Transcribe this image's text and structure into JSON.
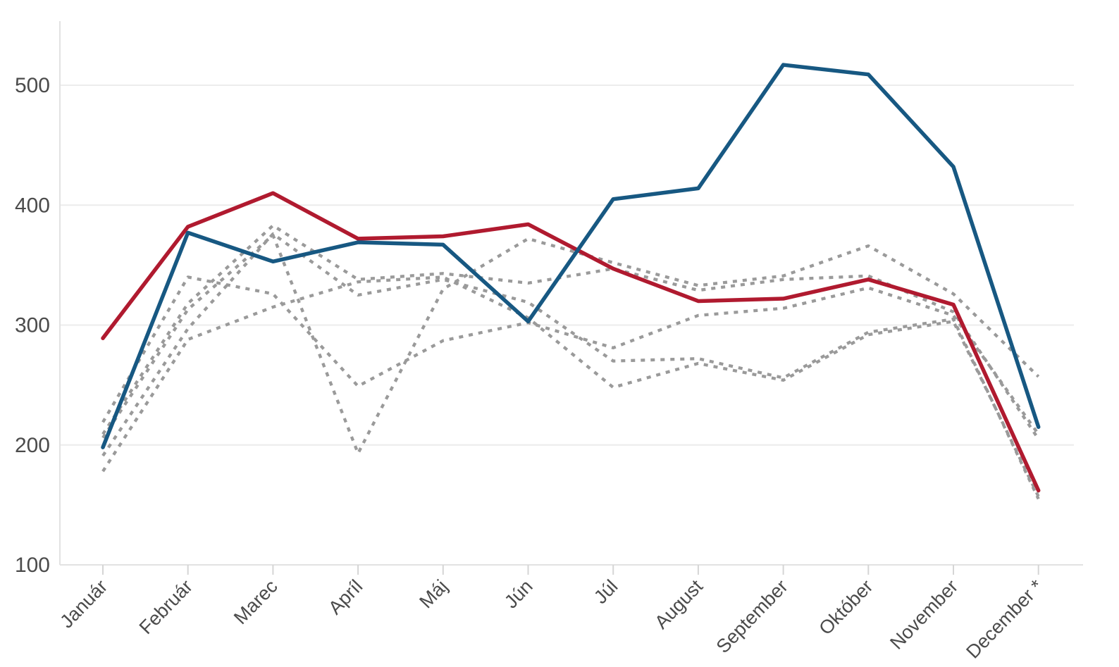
{
  "chart_data": {
    "type": "line",
    "title": "",
    "xlabel": "",
    "ylabel": "",
    "legend": "none",
    "grid": "horizontal",
    "ylim": [
      100,
      552
    ],
    "yticks": [
      100,
      200,
      300,
      400,
      500
    ],
    "categories": [
      "Január",
      "Február",
      "Marec",
      "Apríl",
      "Máj",
      "Jún",
      "Júl",
      "August",
      "September",
      "Október",
      "November",
      "December *"
    ],
    "series": [
      {
        "name": "gray-dashed-1",
        "style": "dashed",
        "color": "#9a9a9a",
        "values": [
          206,
          313,
          375,
          193,
          330,
          372,
          352,
          333,
          341,
          366,
          326,
          257
        ]
      },
      {
        "name": "gray-dashed-2",
        "style": "dashed",
        "color": "#9a9a9a",
        "values": [
          209,
          318,
          383,
          338,
          343,
          335,
          347,
          329,
          338,
          341,
          311,
          205
        ]
      },
      {
        "name": "gray-dashed-3",
        "style": "dashed",
        "color": "#9a9a9a",
        "values": [
          219,
          340,
          326,
          249,
          287,
          302,
          281,
          308,
          314,
          331,
          308,
          209
        ]
      },
      {
        "name": "gray-dashed-4",
        "style": "dashed",
        "color": "#9a9a9a",
        "values": [
          191,
          297,
          376,
          325,
          338,
          319,
          270,
          272,
          256,
          294,
          305,
          155
        ]
      },
      {
        "name": "gray-dashed-5",
        "style": "dashed",
        "color": "#9a9a9a",
        "values": [
          178,
          288,
          315,
          336,
          340,
          306,
          248,
          268,
          254,
          292,
          303,
          157
        ]
      },
      {
        "name": "red-solid",
        "style": "solid",
        "color": "#b01a2f",
        "values": [
          289,
          382,
          410,
          372,
          374,
          384,
          347,
          320,
          322,
          338,
          317,
          162
        ]
      },
      {
        "name": "blue-solid",
        "style": "solid",
        "color": "#175882",
        "values": [
          198,
          377,
          353,
          369,
          367,
          303,
          405,
          414,
          517,
          509,
          432,
          215
        ]
      }
    ],
    "colors": {
      "axis_line": "#e2e2e2",
      "gridline": "#ececec",
      "tick_mark": "#d5d5d5",
      "label_text": "#4b4b4b",
      "background": "#ffffff"
    }
  }
}
